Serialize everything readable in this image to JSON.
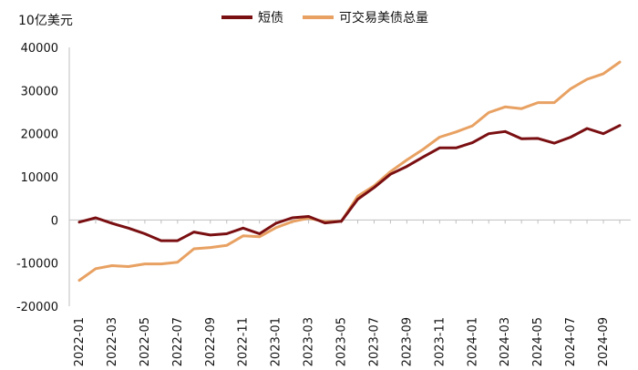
{
  "chart_data": {
    "type": "line",
    "unit_label": "10亿美元",
    "x": [
      "2022-01",
      "2022-02",
      "2022-03",
      "2022-04",
      "2022-05",
      "2022-06",
      "2022-07",
      "2022-08",
      "2022-09",
      "2022-10",
      "2022-11",
      "2022-12",
      "2023-01",
      "2023-02",
      "2023-03",
      "2023-04",
      "2023-05",
      "2023-06",
      "2023-07",
      "2023-08",
      "2023-09",
      "2023-10",
      "2023-11",
      "2023-12",
      "2024-01",
      "2024-02",
      "2024-03",
      "2024-04",
      "2024-05",
      "2024-06",
      "2024-07",
      "2024-08",
      "2024-09",
      "2024-10"
    ],
    "x_tick_labels": [
      "2022-01",
      "2022-03",
      "2022-05",
      "2022-07",
      "2022-09",
      "2022-11",
      "2023-01",
      "2023-03",
      "2023-05",
      "2023-07",
      "2023-09",
      "2023-11",
      "2024-01",
      "2024-03",
      "2024-05",
      "2024-07",
      "2024-09"
    ],
    "y_ticks": [
      40000,
      30000,
      20000,
      10000,
      0,
      -10000,
      -20000
    ],
    "ylim": [
      -20000,
      40000
    ],
    "legend_position": "top",
    "series": [
      {
        "name": "短债",
        "color": "#7a0f12",
        "values": [
          -500,
          500,
          -800,
          -1900,
          -3200,
          -4800,
          -4800,
          -2800,
          -3500,
          -3200,
          -1900,
          -3200,
          -800,
          500,
          800,
          -700,
          -300,
          4800,
          7500,
          10600,
          12400,
          14600,
          16700,
          16700,
          17900,
          20000,
          20500,
          18800,
          18900,
          17800,
          19200,
          21200,
          20000,
          21900
        ]
      },
      {
        "name": "可交易美债总量",
        "color": "#e8a162",
        "values": [
          -14000,
          -11300,
          -10600,
          -10800,
          -10200,
          -10200,
          -9800,
          -6700,
          -6400,
          -5900,
          -3700,
          -3900,
          -1800,
          -400,
          400,
          -400,
          -300,
          5500,
          7900,
          11200,
          13900,
          16400,
          19200,
          20400,
          21800,
          24900,
          26200,
          25800,
          27200,
          27200,
          30400,
          32600,
          33900,
          36600
        ]
      }
    ]
  }
}
